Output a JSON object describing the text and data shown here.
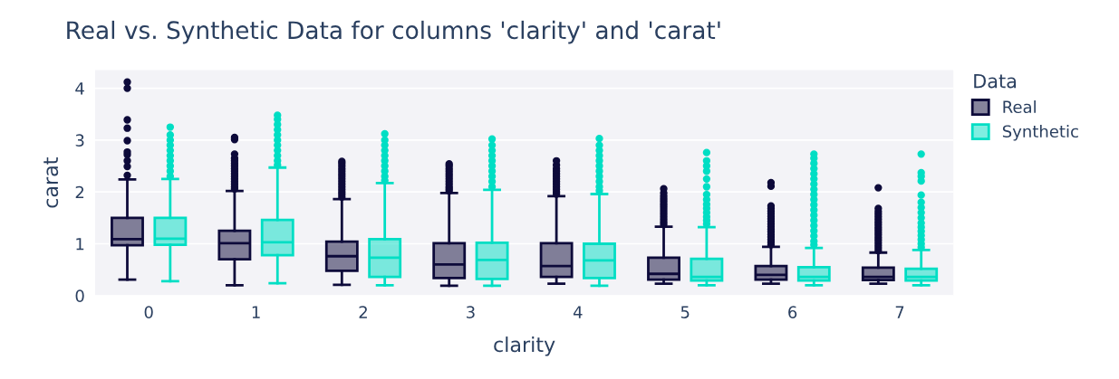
{
  "chart_data": {
    "type": "box",
    "title": "Real vs. Synthetic Data for columns 'clarity' and 'carat'",
    "xlabel": "clarity",
    "ylabel": "carat",
    "legend_title": "Data",
    "legend": "top right",
    "grid": "y",
    "categories": [
      "0",
      "1",
      "2",
      "3",
      "4",
      "5",
      "6",
      "7"
    ],
    "ylim": [
      0,
      4.35
    ],
    "yticks": [
      0,
      1,
      2,
      3,
      4
    ],
    "series": [
      {
        "name": "Real",
        "color": "#0d0a3a",
        "boxes": [
          {
            "low": 0.31,
            "q1": 0.97,
            "median": 1.09,
            "q3": 1.5,
            "high": 2.24,
            "outliers": [
              2.32,
              2.49,
              2.6,
              2.72,
              2.77,
              2.99,
              3.23,
              3.39,
              4.0,
              4.12
            ]
          },
          {
            "low": 0.2,
            "q1": 0.7,
            "median": 1.01,
            "q3": 1.25,
            "high": 2.02,
            "outliers": [
              2.06,
              2.1,
              2.15,
              2.2,
              2.25,
              2.3,
              2.35,
              2.4,
              2.45,
              2.5,
              2.55,
              2.6,
              2.65,
              2.73,
              3.01,
              3.05
            ]
          },
          {
            "low": 0.21,
            "q1": 0.48,
            "median": 0.76,
            "q3": 1.04,
            "high": 1.86,
            "outliers": [
              1.9,
              1.95,
              2.0,
              2.05,
              2.1,
              2.15,
              2.2,
              2.25,
              2.3,
              2.35,
              2.4,
              2.45,
              2.5,
              2.55,
              2.59
            ]
          },
          {
            "low": 0.19,
            "q1": 0.34,
            "median": 0.6,
            "q3": 1.01,
            "high": 1.98,
            "outliers": [
              2.02,
              2.06,
              2.1,
              2.15,
              2.2,
              2.25,
              2.3,
              2.35,
              2.4,
              2.45,
              2.5,
              2.54
            ]
          },
          {
            "low": 0.23,
            "q1": 0.36,
            "median": 0.57,
            "q3": 1.01,
            "high": 1.92,
            "outliers": [
              1.96,
              2.0,
              2.05,
              2.1,
              2.15,
              2.2,
              2.25,
              2.3,
              2.35,
              2.4,
              2.45,
              2.52,
              2.6
            ]
          },
          {
            "low": 0.23,
            "q1": 0.31,
            "median": 0.42,
            "q3": 0.73,
            "high": 1.33,
            "outliers": [
              1.37,
              1.42,
              1.47,
              1.52,
              1.57,
              1.62,
              1.67,
              1.72,
              1.77,
              1.82,
              1.87,
              1.92,
              1.98,
              2.06
            ]
          },
          {
            "low": 0.23,
            "q1": 0.31,
            "median": 0.4,
            "q3": 0.57,
            "high": 0.94,
            "outliers": [
              0.98,
              1.03,
              1.08,
              1.13,
              1.18,
              1.23,
              1.28,
              1.33,
              1.38,
              1.43,
              1.48,
              1.53,
              1.58,
              1.63,
              1.68,
              1.73,
              2.11,
              2.18
            ]
          },
          {
            "low": 0.23,
            "q1": 0.3,
            "median": 0.36,
            "q3": 0.54,
            "high": 0.83,
            "outliers": [
              0.87,
              0.92,
              0.97,
              1.02,
              1.07,
              1.12,
              1.17,
              1.22,
              1.27,
              1.32,
              1.37,
              1.42,
              1.47,
              1.52,
              1.57,
              1.62,
              1.68,
              2.08
            ]
          }
        ]
      },
      {
        "name": "Synthetic",
        "color": "#00dec4",
        "boxes": [
          {
            "low": 0.28,
            "q1": 0.98,
            "median": 1.1,
            "q3": 1.5,
            "high": 2.25,
            "outliers": [
              2.3,
              2.4,
              2.5,
              2.6,
              2.7,
              2.8,
              2.9,
              3.0,
              3.1,
              3.25
            ]
          },
          {
            "low": 0.24,
            "q1": 0.78,
            "median": 1.03,
            "q3": 1.46,
            "high": 2.47,
            "outliers": [
              2.52,
              2.6,
              2.7,
              2.8,
              2.9,
              3.0,
              3.1,
              3.2,
              3.3,
              3.4,
              3.48
            ]
          },
          {
            "low": 0.2,
            "q1": 0.36,
            "median": 0.73,
            "q3": 1.09,
            "high": 2.17,
            "outliers": [
              2.22,
              2.3,
              2.4,
              2.5,
              2.6,
              2.7,
              2.8,
              2.9,
              3.0,
              3.12
            ]
          },
          {
            "low": 0.19,
            "q1": 0.32,
            "median": 0.69,
            "q3": 1.02,
            "high": 2.04,
            "outliers": [
              2.1,
              2.2,
              2.3,
              2.4,
              2.5,
              2.6,
              2.7,
              2.8,
              2.9,
              3.02
            ]
          },
          {
            "low": 0.19,
            "q1": 0.34,
            "median": 0.68,
            "q3": 1.0,
            "high": 1.96,
            "outliers": [
              2.02,
              2.1,
              2.2,
              2.3,
              2.4,
              2.5,
              2.6,
              2.7,
              2.8,
              2.9,
              3.03
            ]
          },
          {
            "low": 0.2,
            "q1": 0.29,
            "median": 0.36,
            "q3": 0.71,
            "high": 1.32,
            "outliers": [
              1.38,
              1.45,
              1.52,
              1.6,
              1.68,
              1.76,
              1.85,
              1.95,
              2.1,
              2.25,
              2.4,
              2.5,
              2.6,
              2.76
            ]
          },
          {
            "low": 0.2,
            "q1": 0.29,
            "median": 0.36,
            "q3": 0.55,
            "high": 0.92,
            "outliers": [
              0.98,
              1.05,
              1.15,
              1.25,
              1.35,
              1.45,
              1.55,
              1.65,
              1.75,
              1.85,
              1.95,
              2.05,
              2.15,
              2.25,
              2.35,
              2.45,
              2.55,
              2.65,
              2.73
            ]
          },
          {
            "low": 0.2,
            "q1": 0.29,
            "median": 0.36,
            "q3": 0.52,
            "high": 0.88,
            "outliers": [
              0.93,
              1.0,
              1.08,
              1.16,
              1.24,
              1.32,
              1.4,
              1.5,
              1.6,
              1.7,
              1.8,
              1.94,
              2.21,
              2.3,
              2.37,
              2.73
            ]
          }
        ]
      }
    ]
  }
}
